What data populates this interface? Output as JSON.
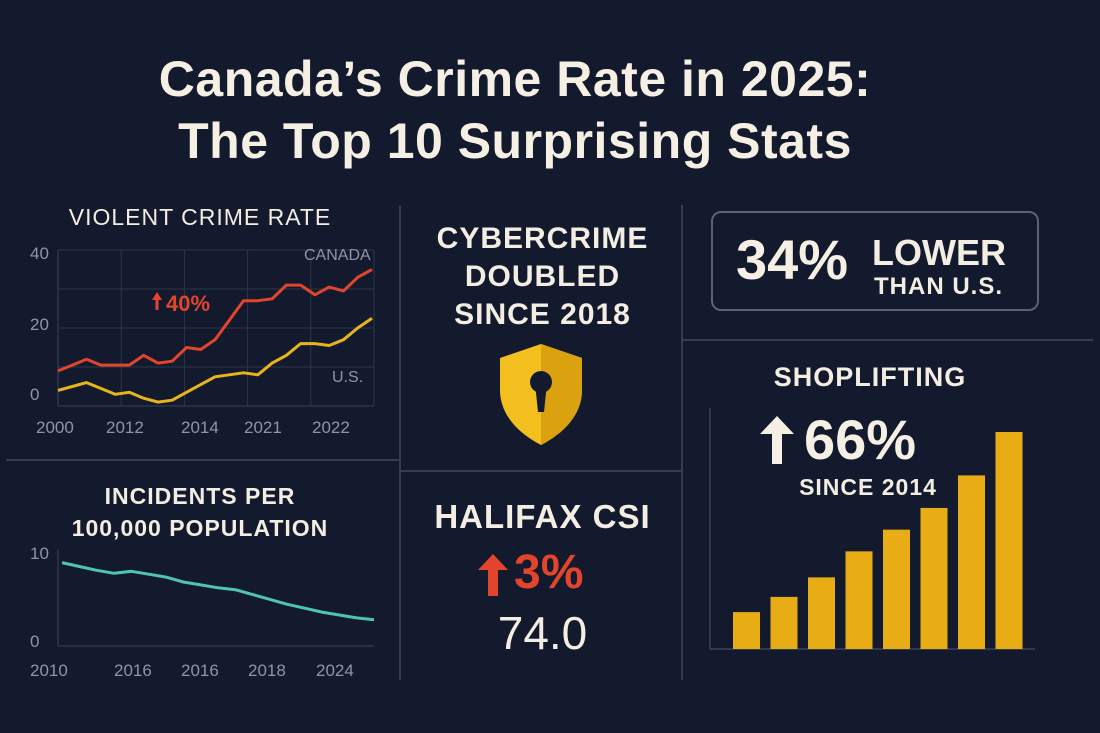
{
  "title_line1": "Canada’s Crime Rate in 2025:",
  "title_line2": "The Top 10 Surprising Stats",
  "colors": {
    "background": "#131a2e",
    "canada_red": "#e2452b",
    "us_yellow": "#e8b41c",
    "teal": "#4fc4b0",
    "bar_gold": "#e8ad14",
    "divider": "#343c52"
  },
  "violent": {
    "title": "VIOLENT CRIME RATE",
    "callout": "40%",
    "callout_icon": "arrow-up-icon",
    "series_labels": {
      "canada": "CANADA",
      "us": "U.S."
    },
    "y_ticks": [
      "40",
      "20",
      "0"
    ],
    "x_ticks": [
      "2000",
      "2012",
      "2014",
      "2021",
      "2022"
    ]
  },
  "cyber": {
    "lines": [
      "CYBERCRIME",
      "DOUBLED",
      "SINCE 2018"
    ],
    "icon": "shield-keyhole-icon"
  },
  "lower_than_us": {
    "value": "34%",
    "line1": "LOWER",
    "line2": "THAN U.S."
  },
  "incidents": {
    "title_line1": "INCIDENTS PER",
    "title_line2": "100,000 POPULATION",
    "y_ticks": [
      "10",
      "0"
    ],
    "x_ticks": [
      "2010",
      "2016",
      "2016",
      "2018",
      "2024"
    ]
  },
  "halifax": {
    "title": "HALIFAX CSI",
    "change": "3%",
    "change_icon": "arrow-up-icon",
    "value": "74.0"
  },
  "shoplifting": {
    "title": "SHOPLIFTING",
    "change": "66%",
    "change_icon": "arrow-up-icon",
    "since": "SINCE 2014"
  },
  "chart_data": [
    {
      "type": "line",
      "title": "VIOLENT CRIME RATE",
      "ylim": [
        0,
        40
      ],
      "y_ticks": [
        40,
        20,
        0
      ],
      "x_tick_labels": [
        "2000",
        "2012",
        "2014",
        "2021",
        "2022"
      ],
      "annotation": "40%",
      "series": [
        {
          "name": "CANADA",
          "color": "#e2452b",
          "values": [
            9,
            10.5,
            12,
            10.5,
            10.5,
            10.5,
            13,
            11,
            11.5,
            15,
            14.5,
            17,
            22,
            27,
            27,
            27.5,
            31,
            31,
            28.5,
            30.5,
            29.5,
            33,
            35
          ]
        },
        {
          "name": "U.S.",
          "color": "#e8b41c",
          "values": [
            4,
            5,
            6,
            4.5,
            3,
            3.5,
            2,
            1,
            1.5,
            3.5,
            5.5,
            7.5,
            8,
            8.5,
            8,
            11,
            13,
            16,
            16,
            15.5,
            17,
            20,
            22.5
          ]
        }
      ]
    },
    {
      "type": "line",
      "title": "INCIDENTS PER 100,000 POPULATION",
      "ylim": [
        0,
        10
      ],
      "y_ticks": [
        10,
        0
      ],
      "x_tick_labels": [
        "2010",
        "2016",
        "2016",
        "2018",
        "2024"
      ],
      "series": [
        {
          "color": "#4fc4b0",
          "values": [
            8.6,
            8.2,
            7.8,
            7.5,
            7.7,
            7.4,
            7.1,
            6.6,
            6.3,
            6.0,
            5.8,
            5.3,
            4.8,
            4.3,
            3.9,
            3.5,
            3.2,
            2.9,
            2.7
          ]
        }
      ]
    },
    {
      "type": "bar",
      "title": "SHOPLIFTING",
      "annotation": "66% SINCE 2014",
      "color": "#e8ad14",
      "values": [
        17,
        24,
        33,
        45,
        55,
        65,
        80,
        100
      ]
    }
  ]
}
